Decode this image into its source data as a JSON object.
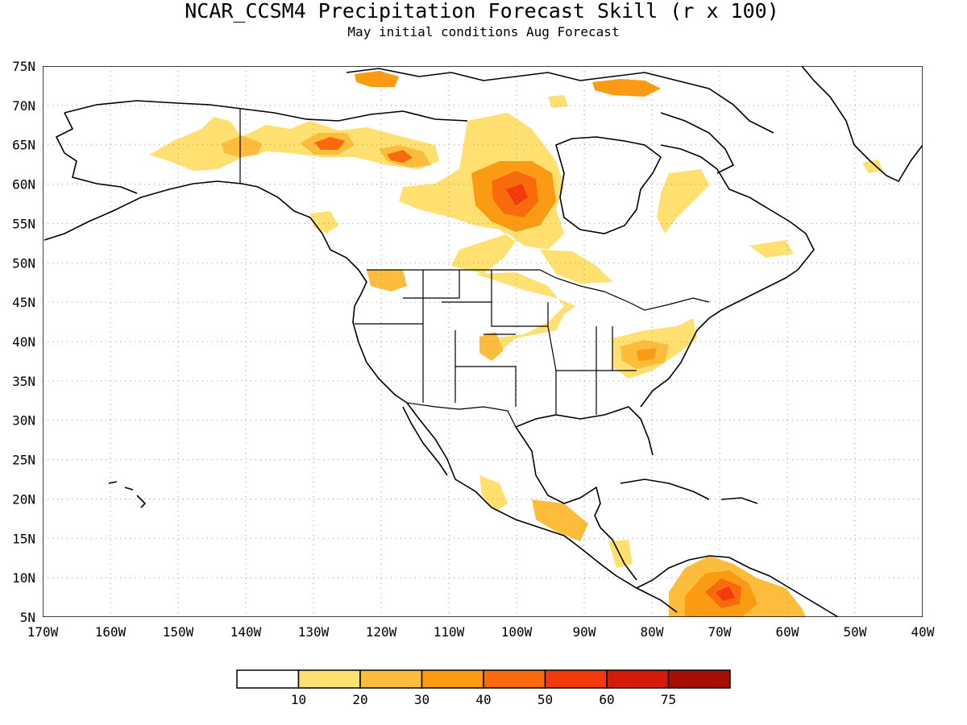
{
  "title": "NCAR_CCSM4 Precipitation Forecast Skill (r x 100)",
  "subtitle": "May initial conditions  Aug Forecast",
  "lat_labels": [
    "75N",
    "70N",
    "65N",
    "60N",
    "55N",
    "50N",
    "45N",
    "40N",
    "35N",
    "30N",
    "25N",
    "20N",
    "15N",
    "10N",
    "5N"
  ],
  "lon_labels": [
    "170W",
    "160W",
    "150W",
    "140W",
    "130W",
    "120W",
    "110W",
    "100W",
    "90W",
    "80W",
    "70W",
    "60W",
    "50W",
    "40W"
  ],
  "legend": {
    "ticks": [
      "10",
      "20",
      "30",
      "40",
      "50",
      "60",
      "75"
    ],
    "colors": [
      "#ffffff",
      "#ffe070",
      "#fdbd3c",
      "#fb9b14",
      "#f86a0c",
      "#f23a0a",
      "#d41a08",
      "#a50f05"
    ]
  },
  "colors": {
    "grid": "#999999",
    "coast": "#000000"
  },
  "skill_regions": [
    {
      "lon": -128,
      "lat": 65,
      "level": 4
    },
    {
      "lon": -118,
      "lat": 63,
      "level": 4
    },
    {
      "lon": -100,
      "lat": 59,
      "level": 4
    },
    {
      "lon": -70,
      "lat": 8,
      "level": 4
    },
    {
      "lon": -83,
      "lat": 37,
      "level": 3
    },
    {
      "lon": -105,
      "lat": 41,
      "level": 3
    },
    {
      "lon": -140,
      "lat": 64,
      "level": 3
    },
    {
      "lon": -75,
      "lat": 72,
      "level": 2
    },
    {
      "lon": -90,
      "lat": 48,
      "level": 2
    }
  ]
}
